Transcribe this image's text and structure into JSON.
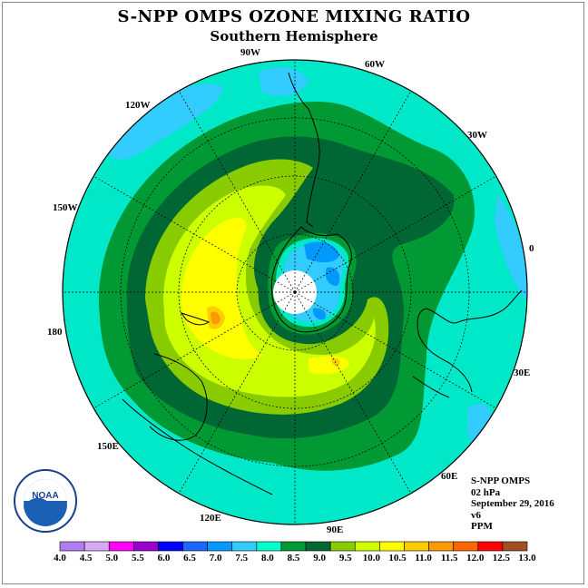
{
  "title": "S-NPP OMPS OZONE MIXING RATIO",
  "subtitle": "Southern Hemisphere",
  "longitude_labels": [
    "90W",
    "60W",
    "30W",
    "0",
    "30E",
    "60E",
    "90E",
    "120E",
    "150E",
    "180",
    "150W",
    "120W"
  ],
  "info": {
    "instrument": "S-NPP OMPS",
    "level": "02 hPa",
    "date": "September 29, 2016",
    "version": "v6",
    "units": "PPM"
  },
  "colorbar": {
    "labels": [
      "4.0",
      "4.5",
      "5.0",
      "5.5",
      "6.0",
      "6.5",
      "7.0",
      "7.5",
      "8.0",
      "8.5",
      "9.0",
      "9.5",
      "10.0",
      "10.5",
      "11.0",
      "11.5",
      "12.0",
      "12.5",
      "13.0"
    ],
    "colors": [
      "#b07cf0",
      "#d8a8f4",
      "#ff00ff",
      "#9900cc",
      "#0000ff",
      "#1a66ff",
      "#0099ff",
      "#33ccff",
      "#00ffcc",
      "#009933",
      "#006633",
      "#88cc00",
      "#ccff00",
      "#ffff00",
      "#ffcc00",
      "#ff9900",
      "#ff6600",
      "#ff0000",
      "#a05020"
    ]
  },
  "logo": {
    "text": "NOAA"
  }
}
